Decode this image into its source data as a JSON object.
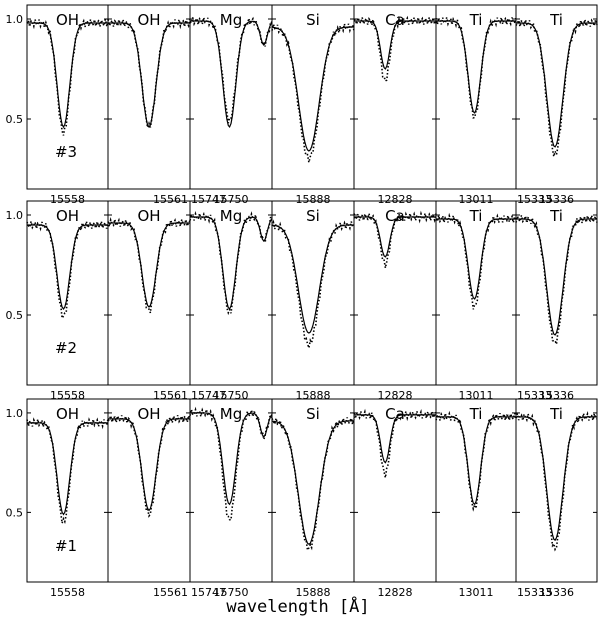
{
  "chart_data": {
    "type": "line",
    "xlabel": "wavelength [Å]",
    "ylim": [
      0.15,
      1.07
    ],
    "yticks": [
      0.5,
      1.0
    ],
    "ytick_labels": [
      "0.5",
      "1.0"
    ],
    "series_styles": {
      "model": "solid",
      "observed": "dotted"
    },
    "column_elements": [
      "OH",
      "OH",
      "Mg",
      "Si",
      "Ca",
      "Ti",
      "Ti"
    ],
    "column_xticks": [
      "15558",
      "15561",
      "15750",
      "15888",
      "12828",
      "13011",
      "15336"
    ],
    "extra_left_ticks": [
      "",
      "",
      "15747",
      "",
      "",
      "",
      "15333"
    ],
    "rows": [
      {
        "star_label": "#3",
        "panels": [
          {
            "lines": [
              {
                "center": 0.45,
                "width": 0.11,
                "depth": 0.52
              }
            ],
            "cont": 0.98,
            "obs_depth": 0.55
          },
          {
            "lines": [
              {
                "center": 0.5,
                "width": 0.12,
                "depth": 0.52
              }
            ],
            "cont": 0.98,
            "obs_depth": 0.52
          },
          {
            "lines": [
              {
                "center": 0.48,
                "width": 0.11,
                "depth": 0.53
              },
              {
                "center": 0.9,
                "width": 0.06,
                "depth": 0.12
              }
            ],
            "cont": 0.99,
            "obs_depth": 0.5
          },
          {
            "lines": [
              {
                "center": 0.45,
                "width": 0.18,
                "depth": 0.62
              }
            ],
            "cont": 0.96,
            "obs_depth": 0.66
          },
          {
            "lines": [
              {
                "center": 0.38,
                "width": 0.08,
                "depth": 0.24
              }
            ],
            "cont": 0.99,
            "obs_depth": 0.3
          },
          {
            "lines": [
              {
                "center": 0.48,
                "width": 0.11,
                "depth": 0.46
              }
            ],
            "cont": 0.99,
            "obs_depth": 0.48
          },
          {
            "lines": [
              {
                "center": 0.48,
                "width": 0.14,
                "depth": 0.62
              }
            ],
            "cont": 0.98,
            "obs_depth": 0.66
          }
        ]
      },
      {
        "star_label": "#2",
        "panels": [
          {
            "lines": [
              {
                "center": 0.45,
                "width": 0.11,
                "depth": 0.42
              }
            ],
            "cont": 0.95,
            "obs_depth": 0.46
          },
          {
            "lines": [
              {
                "center": 0.5,
                "width": 0.12,
                "depth": 0.42
              }
            ],
            "cont": 0.96,
            "obs_depth": 0.44
          },
          {
            "lines": [
              {
                "center": 0.48,
                "width": 0.11,
                "depth": 0.46
              },
              {
                "center": 0.9,
                "width": 0.06,
                "depth": 0.12
              }
            ],
            "cont": 0.99,
            "obs_depth": 0.48
          },
          {
            "lines": [
              {
                "center": 0.45,
                "width": 0.18,
                "depth": 0.54
              }
            ],
            "cont": 0.95,
            "obs_depth": 0.6
          },
          {
            "lines": [
              {
                "center": 0.38,
                "width": 0.08,
                "depth": 0.2
              }
            ],
            "cont": 0.99,
            "obs_depth": 0.24
          },
          {
            "lines": [
              {
                "center": 0.48,
                "width": 0.11,
                "depth": 0.4
              }
            ],
            "cont": 0.98,
            "obs_depth": 0.44
          },
          {
            "lines": [
              {
                "center": 0.48,
                "width": 0.14,
                "depth": 0.58
              }
            ],
            "cont": 0.98,
            "obs_depth": 0.62
          }
        ]
      },
      {
        "star_label": "#1",
        "panels": [
          {
            "lines": [
              {
                "center": 0.45,
                "width": 0.11,
                "depth": 0.46
              }
            ],
            "cont": 0.95,
            "obs_depth": 0.5
          },
          {
            "lines": [
              {
                "center": 0.5,
                "width": 0.12,
                "depth": 0.46
              }
            ],
            "cont": 0.97,
            "obs_depth": 0.48
          },
          {
            "lines": [
              {
                "center": 0.48,
                "width": 0.11,
                "depth": 0.46
              },
              {
                "center": 0.9,
                "width": 0.06,
                "depth": 0.12
              }
            ],
            "cont": 1.0,
            "obs_depth": 0.54
          },
          {
            "lines": [
              {
                "center": 0.45,
                "width": 0.18,
                "depth": 0.62
              }
            ],
            "cont": 0.96,
            "obs_depth": 0.64
          },
          {
            "lines": [
              {
                "center": 0.38,
                "width": 0.08,
                "depth": 0.24
              }
            ],
            "cont": 0.99,
            "obs_depth": 0.3
          },
          {
            "lines": [
              {
                "center": 0.48,
                "width": 0.11,
                "depth": 0.44
              }
            ],
            "cont": 0.98,
            "obs_depth": 0.46
          },
          {
            "lines": [
              {
                "center": 0.48,
                "width": 0.14,
                "depth": 0.62
              }
            ],
            "cont": 0.98,
            "obs_depth": 0.66
          }
        ]
      }
    ]
  }
}
